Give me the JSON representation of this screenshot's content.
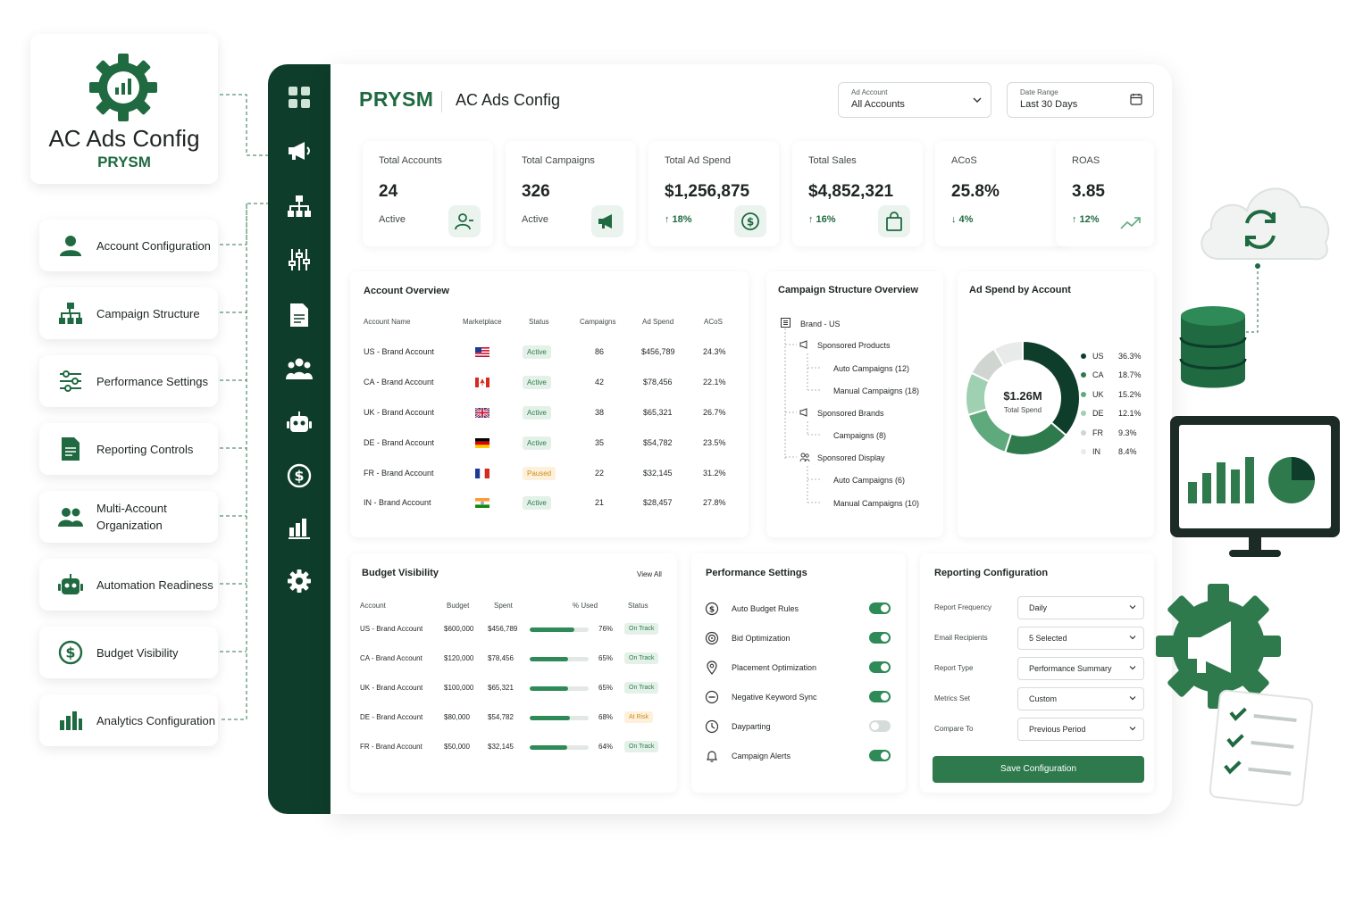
{
  "hub": {
    "title": "AC Ads Config",
    "subtitle": "PRYSM",
    "icon": "gear-chart-icon"
  },
  "features": [
    {
      "label": "Account Configuration",
      "icon": "user-icon"
    },
    {
      "label": "Campaign Structure",
      "icon": "hierarchy-icon"
    },
    {
      "label": "Performance Settings",
      "icon": "sliders-icon"
    },
    {
      "label": "Reporting Controls",
      "icon": "report-icon"
    },
    {
      "label": "Multi-Account\nOrganization",
      "icon": "users-icon"
    },
    {
      "label": "Automation Readiness",
      "icon": "robot-icon"
    },
    {
      "label": "Budget Visibility",
      "icon": "dollar-icon"
    },
    {
      "label": "Analytics Configuration",
      "icon": "bar-chart-icon"
    }
  ],
  "sidebar": [
    "grid-icon",
    "megaphone-icon",
    "hierarchy-icon",
    "sliders-icon",
    "document-icon",
    "users-icon",
    "robot-icon",
    "dollar-icon",
    "bar-chart-icon",
    "gear-icon"
  ],
  "header": {
    "logo": "PRYSM",
    "title": "AC Ads Config",
    "ad_account": {
      "caption": "Ad Account",
      "value": "All Accounts"
    },
    "date_range": {
      "caption": "Date Range",
      "value": "Last 30 Days"
    }
  },
  "kpis": [
    {
      "label": "Total Accounts",
      "value": "24",
      "sub": "Active",
      "trend": false,
      "icon": "user-icon"
    },
    {
      "label": "Total Campaigns",
      "value": "326",
      "sub": "Active",
      "trend": false,
      "icon": "megaphone-icon"
    },
    {
      "label": "Total Ad Spend",
      "value": "$1,256,875",
      "sub": "↑ 18%",
      "trend": true,
      "icon": "dollar-icon"
    },
    {
      "label": "Total Sales",
      "value": "$4,852,321",
      "sub": "↑ 16%",
      "trend": true,
      "icon": "bag-icon"
    },
    {
      "label": "ACoS",
      "value": "25.8%",
      "sub": "↓ 4%",
      "trend": true,
      "icon": ""
    },
    {
      "label": "ROAS",
      "value": "3.85",
      "sub": "↑ 12%",
      "trend": true,
      "icon": "trend-icon"
    }
  ],
  "account_overview": {
    "title": "Account Overview",
    "columns": [
      "Account Name",
      "Marketplace",
      "Status",
      "Campaigns",
      "Ad Spend",
      "ACoS"
    ],
    "rows": [
      {
        "name": "US - Brand Account",
        "flag": "us",
        "status": "Active",
        "campaigns": "86",
        "spend": "$456,789",
        "acos": "24.3%"
      },
      {
        "name": "CA - Brand Account",
        "flag": "ca",
        "status": "Active",
        "campaigns": "42",
        "spend": "$78,456",
        "acos": "22.1%"
      },
      {
        "name": "UK - Brand Account",
        "flag": "uk",
        "status": "Active",
        "campaigns": "38",
        "spend": "$65,321",
        "acos": "26.7%"
      },
      {
        "name": "DE - Brand Account",
        "flag": "de",
        "status": "Active",
        "campaigns": "35",
        "spend": "$54,782",
        "acos": "23.5%"
      },
      {
        "name": "FR - Brand Account",
        "flag": "fr",
        "status": "Paused",
        "campaigns": "22",
        "spend": "$32,145",
        "acos": "31.2%"
      },
      {
        "name": "IN - Brand Account",
        "flag": "in",
        "status": "Active",
        "campaigns": "21",
        "spend": "$28,457",
        "acos": "27.8%"
      }
    ]
  },
  "campaign_structure": {
    "title": "Campaign Structure Overview",
    "nodes": [
      {
        "label": "Brand - US",
        "level": 0,
        "icon": "list-icon"
      },
      {
        "label": "Sponsored Products",
        "level": 1,
        "icon": "megaphone-icon"
      },
      {
        "label": "Auto Campaigns (12)",
        "level": 2,
        "icon": ""
      },
      {
        "label": "Manual Campaigns (18)",
        "level": 2,
        "icon": ""
      },
      {
        "label": "Sponsored Brands",
        "level": 1,
        "icon": "megaphone-icon"
      },
      {
        "label": "Campaigns (8)",
        "level": 2,
        "icon": ""
      },
      {
        "label": "Sponsored Display",
        "level": 1,
        "icon": "users-icon"
      },
      {
        "label": "Auto Campaigns (6)",
        "level": 2,
        "icon": ""
      },
      {
        "label": "Manual Campaigns (10)",
        "level": 2,
        "icon": ""
      }
    ]
  },
  "chart_data": {
    "type": "pie",
    "title": "Ad Spend by Account",
    "center_value": "$1.26M",
    "center_label": "Total Spend",
    "categories": [
      "US",
      "CA",
      "UK",
      "DE",
      "FR",
      "IN"
    ],
    "values": [
      36.3,
      18.7,
      15.2,
      12.1,
      9.3,
      8.4
    ],
    "value_labels": [
      "36.3%",
      "18.7%",
      "15.2%",
      "12.1%",
      "9.3%",
      "8.4%"
    ],
    "colors": [
      "#0f3d2b",
      "#2e7a4c",
      "#5faa7c",
      "#9fd0b1",
      "#d0d5d2",
      "#e8ebe9"
    ],
    "legend": "right"
  },
  "budget": {
    "title": "Budget Visibility",
    "view_all": "View All",
    "columns": [
      "Account",
      "Budget",
      "Spent",
      "% Used",
      "Status"
    ],
    "rows": [
      {
        "name": "US - Brand Account",
        "budget": "$600,000",
        "spent": "$456,789",
        "pct": 76,
        "pct_label": "76%",
        "status": "On Track",
        "risk": false
      },
      {
        "name": "CA - Brand Account",
        "budget": "$120,000",
        "spent": "$78,456",
        "pct": 65,
        "pct_label": "65%",
        "status": "On Track",
        "risk": false
      },
      {
        "name": "UK - Brand Account",
        "budget": "$100,000",
        "spent": "$65,321",
        "pct": 65,
        "pct_label": "65%",
        "status": "On Track",
        "risk": false
      },
      {
        "name": "DE - Brand Account",
        "budget": "$80,000",
        "spent": "$54,782",
        "pct": 68,
        "pct_label": "68%",
        "status": "At Risk",
        "risk": true
      },
      {
        "name": "FR - Brand Account",
        "budget": "$50,000",
        "spent": "$32,145",
        "pct": 64,
        "pct_label": "64%",
        "status": "On Track",
        "risk": false
      }
    ]
  },
  "performance": {
    "title": "Performance Settings",
    "items": [
      {
        "label": "Auto Budget Rules",
        "on": true,
        "icon": "dollar-icon"
      },
      {
        "label": "Bid Optimization",
        "on": true,
        "icon": "target-icon"
      },
      {
        "label": "Placement Optimization",
        "on": true,
        "icon": "pin-icon"
      },
      {
        "label": "Negative Keyword Sync",
        "on": true,
        "icon": "minus-circle-icon"
      },
      {
        "label": "Dayparting",
        "on": false,
        "icon": "clock-icon"
      },
      {
        "label": "Campaign Alerts",
        "on": true,
        "icon": "bell-icon"
      }
    ]
  },
  "reporting": {
    "title": "Reporting Configuration",
    "fields": [
      {
        "label": "Report Frequency",
        "value": "Daily"
      },
      {
        "label": "Email Recipients",
        "value": "5 Selected"
      },
      {
        "label": "Report Type",
        "value": "Performance Summary"
      },
      {
        "label": "Metrics Set",
        "value": "Custom"
      },
      {
        "label": "Compare To",
        "value": "Previous Period"
      }
    ],
    "save_label": "Save Configuration"
  },
  "decor": [
    "cloud-sync-icon",
    "database-icon",
    "monitor-chart-icon",
    "gear-megaphone-icon",
    "checklist-icon"
  ]
}
